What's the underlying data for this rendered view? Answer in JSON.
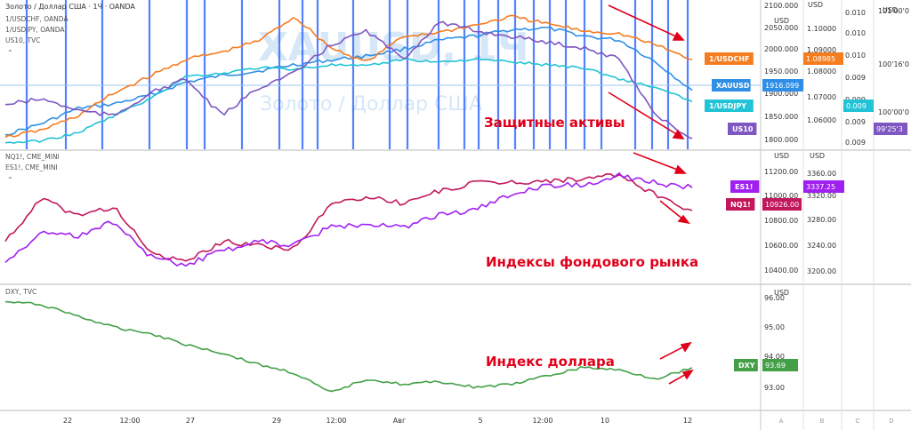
{
  "header": {
    "symbol_line": "Золото / Доллар США · 1Ч · OANDA",
    "overlay_symbols": [
      "1/USDCHF, OANDA",
      "1/USDJPY, OANDA",
      "US10, TVC"
    ],
    "watermark_ticker": "XAUUSD, 1Ч",
    "watermark_name": "Золото / Доллар США"
  },
  "panel2": {
    "symbols": [
      "NQ1!, CME_MINI",
      "ES1!, CME_MINI"
    ]
  },
  "panel3": {
    "symbols": [
      "DXY, TVC"
    ]
  },
  "annotations": {
    "safe": "Защитные активы",
    "indices": "Индексы фондового рынка",
    "dollar": "Индекс доллара"
  },
  "colors": {
    "xau": "#2f8fe6",
    "usdchf": "#f57c1f",
    "usdjpy": "#22c3d6",
    "us10": "#7e57c2",
    "nq": "#c2185b",
    "es": "#a020f0",
    "dxy": "#43a047",
    "annotation": "#e0001a",
    "vline": "#2962ff"
  },
  "chart_data": [
    {
      "type": "line",
      "title": "",
      "axes": [
        {
          "name": "A",
          "unit": "USD",
          "ticks": [
            "2100.000",
            "2050.000",
            "2000.000",
            "1950.000",
            "1900.000",
            "1850.000",
            "1800.000"
          ],
          "ylim": [
            1790,
            2110
          ]
        },
        {
          "name": "B",
          "unit": "USD",
          "ticks": [
            "1.10000",
            "1.09000",
            "1.08000",
            "1.07000",
            "1.06000"
          ],
          "ylim": [
            1.0595,
            1.109
          ]
        },
        {
          "name": "C",
          "ticks": [
            "0.010",
            "0.010",
            "0.010",
            "0.009",
            "0.009",
            "0.009",
            "0.009"
          ]
        },
        {
          "name": "D",
          "unit": "USD",
          "ticks": [
            "101'00'0",
            "100'16'0",
            "100'00'0"
          ]
        }
      ],
      "series": [
        {
          "name": "XAUUSD",
          "last_label": "1916.099",
          "color": "#2f8fe6",
          "x": [
            0,
            1,
            2,
            3,
            4,
            5,
            6,
            7,
            8,
            9,
            10,
            11,
            12,
            13,
            14,
            15,
            16,
            17,
            18,
            19
          ],
          "values": [
            1815,
            1840,
            1875,
            1885,
            1905,
            1935,
            1950,
            1960,
            1975,
            1985,
            1995,
            2010,
            2030,
            2040,
            2055,
            2058,
            2040,
            2030,
            1980,
            1916
          ]
        },
        {
          "name": "1/USDCHF",
          "last_label": "1.08985",
          "color": "#f57c1f",
          "x": [
            0,
            1,
            2,
            3,
            4,
            5,
            6,
            7,
            8,
            9,
            10,
            11,
            12,
            13,
            14,
            15,
            16,
            17,
            18,
            19
          ],
          "values": [
            1.0625,
            1.065,
            1.07,
            1.078,
            1.084,
            1.09,
            1.0925,
            1.0965,
            1.105,
            1.094,
            1.089,
            1.098,
            1.0995,
            1.102,
            1.105,
            1.1025,
            1.1,
            1.099,
            1.095,
            1.0899
          ]
        },
        {
          "name": "1/USDJPY",
          "last_label": "0.009",
          "color": "#22c3d6",
          "x": [
            0,
            1,
            2,
            3,
            4,
            5,
            6,
            7,
            8,
            9,
            10,
            11,
            12,
            13,
            14,
            15,
            16,
            17,
            18,
            19
          ],
          "values": [
            1.0605,
            1.0612,
            1.064,
            1.07,
            1.076,
            1.084,
            1.085,
            1.087,
            1.0865,
            1.088,
            1.0875,
            1.09,
            1.089,
            1.09,
            1.089,
            1.088,
            1.087,
            1.083,
            1.08,
            1.075
          ]
        },
        {
          "name": "US10",
          "last_label": "99'25'3",
          "color": "#7e57c2",
          "x": [
            0,
            1,
            2,
            3,
            4,
            5,
            6,
            7,
            8,
            9,
            10,
            11,
            12,
            13,
            14,
            15,
            16,
            17,
            18,
            19
          ],
          "values": [
            1.074,
            1.076,
            1.072,
            1.07,
            1.078,
            1.083,
            1.07,
            1.08,
            1.085,
            1.095,
            1.1,
            1.09,
            1.103,
            1.1,
            1.098,
            1.096,
            1.094,
            1.09,
            1.07,
            1.062
          ]
        }
      ]
    },
    {
      "type": "line",
      "title": "",
      "axes": [
        {
          "name": "A",
          "unit": "USD",
          "ticks": [
            "11200.00",
            "11000.00",
            "10800.00",
            "10600.00",
            "10400.00"
          ],
          "ylim": [
            10330,
            11330
          ]
        },
        {
          "name": "B",
          "unit": "USD",
          "ticks": [
            "3360.00",
            "3320.00",
            "3280.00",
            "3240.00",
            "3200.00"
          ],
          "ylim": [
            3185,
            3375
          ]
        }
      ],
      "series": [
        {
          "name": "NQ1!",
          "last_label": "10926.00",
          "color": "#c2185b",
          "x": [
            0,
            1,
            2,
            3,
            4,
            5,
            6,
            7,
            8,
            9,
            10,
            11,
            12,
            13,
            14,
            15,
            16,
            17,
            18,
            19
          ],
          "values": [
            10650,
            11030,
            10880,
            10960,
            10550,
            10460,
            10650,
            10620,
            10580,
            10980,
            11050,
            10990,
            11100,
            11170,
            11180,
            11190,
            11210,
            11240,
            11060,
            10926
          ]
        },
        {
          "name": "ES1!",
          "last_label": "3337.25",
          "color": "#a020f0",
          "x": [
            0,
            1,
            2,
            3,
            4,
            5,
            6,
            7,
            8,
            9,
            10,
            11,
            12,
            13,
            14,
            15,
            16,
            17,
            18,
            19
          ],
          "values": [
            3210,
            3260,
            3255,
            3280,
            3220,
            3205,
            3230,
            3245,
            3240,
            3270,
            3275,
            3270,
            3290,
            3300,
            3325,
            3340,
            3342,
            3358,
            3345,
            3337
          ]
        }
      ]
    },
    {
      "type": "line",
      "title": "",
      "axes": [
        {
          "name": "A",
          "unit": "USD",
          "ticks": [
            "96.00",
            "95.00",
            "94.00",
            "93.00"
          ],
          "ylim": [
            92.5,
            96.3
          ]
        }
      ],
      "series": [
        {
          "name": "DXY",
          "last_label": "93.69",
          "color": "#43a047",
          "x": [
            0,
            1,
            2,
            3,
            4,
            5,
            6,
            7,
            8,
            9,
            10,
            11,
            12,
            13,
            14,
            15,
            16,
            17,
            18,
            19
          ],
          "values": [
            96.0,
            95.9,
            95.5,
            95.1,
            94.9,
            94.5,
            94.2,
            93.8,
            93.5,
            92.8,
            93.3,
            93.1,
            93.2,
            93.0,
            93.1,
            93.4,
            93.7,
            93.6,
            93.3,
            93.69
          ]
        }
      ]
    },
    {
      "type": "line",
      "x_axis_labels": [
        "22",
        "12:00",
        "27",
        "29",
        "12:00",
        "Авг",
        "5",
        "12:00",
        "10",
        "12"
      ],
      "column_labels": [
        "A",
        "B",
        "C",
        "D"
      ]
    }
  ]
}
